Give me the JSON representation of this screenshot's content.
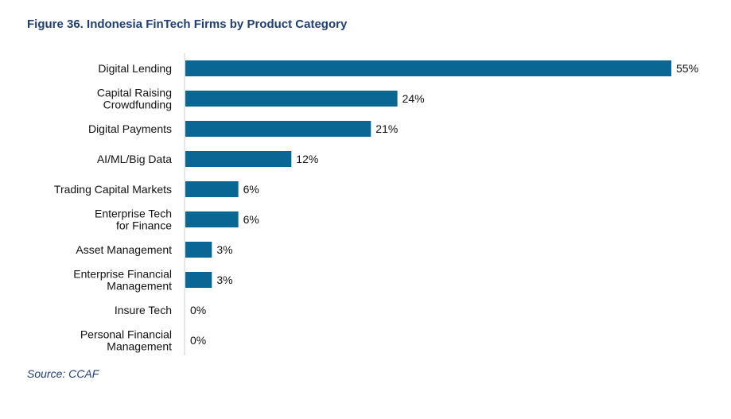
{
  "figure": {
    "title": "Figure 36. Indonesia FinTech Firms by Product Category",
    "source": "Source: CCAF"
  },
  "colors": {
    "bar": "#0a6794",
    "title": "#1f3f73",
    "axis": "#cccccc",
    "text": "#111111"
  },
  "chart_data": {
    "type": "bar",
    "orientation": "horizontal",
    "title": "Figure 36. Indonesia FinTech Firms by Product Category",
    "xlabel": "",
    "ylabel": "",
    "value_unit": "%",
    "xlim": [
      0,
      55
    ],
    "grid": false,
    "legend": "none",
    "categories": [
      "Digital Lending",
      "Capital Raising Crowdfunding",
      "Digital Payments",
      "AI/ML/Big Data",
      "Trading Capital Markets",
      "Enterprise Tech for Finance",
      "Asset Management",
      "Enterprise Financial Management",
      "Insure Tech",
      "Personal Financial Management"
    ],
    "category_lines": [
      [
        "Digital Lending"
      ],
      [
        "Capital Raising",
        "Crowdfunding"
      ],
      [
        "Digital Payments"
      ],
      [
        "AI/ML/Big Data"
      ],
      [
        "Trading Capital Markets"
      ],
      [
        "Enterprise Tech",
        "for Finance"
      ],
      [
        "Asset Management"
      ],
      [
        "Enterprise Financial",
        "Management"
      ],
      [
        "Insure Tech"
      ],
      [
        "Personal Financial",
        "Management"
      ]
    ],
    "values": [
      55,
      24,
      21,
      12,
      6,
      6,
      3,
      3,
      0,
      0
    ],
    "data_labels": [
      "55%",
      "24%",
      "21%",
      "12%",
      "6%",
      "6%",
      "3%",
      "3%",
      "0%",
      "0%"
    ]
  }
}
